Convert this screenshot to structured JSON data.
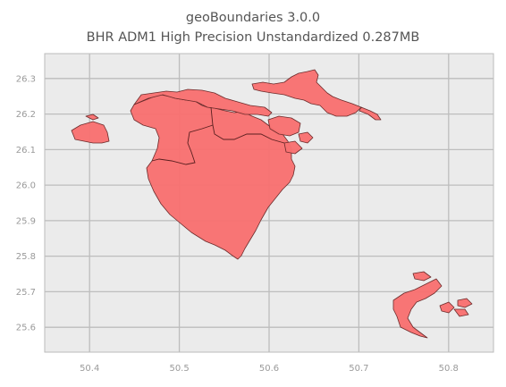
{
  "title_line1": "geoBoundaries 3.0.0",
  "title_line2": "BHR ADM1 High Precision Unstandardized 0.287MB",
  "chart_data": {
    "type": "map",
    "xticks": [
      "50.4",
      "50.5",
      "50.6",
      "50.7",
      "50.8"
    ],
    "yticks": [
      "26.3",
      "26.2",
      "26.1",
      "26.0",
      "25.9",
      "25.8",
      "25.7",
      "25.6"
    ],
    "xlim": [
      50.35,
      50.85
    ],
    "ylim": [
      25.53,
      26.37
    ],
    "grid": true,
    "fill_color": "#f87171",
    "edge_color": "#6b2b2b",
    "background": "#ebebeb"
  }
}
